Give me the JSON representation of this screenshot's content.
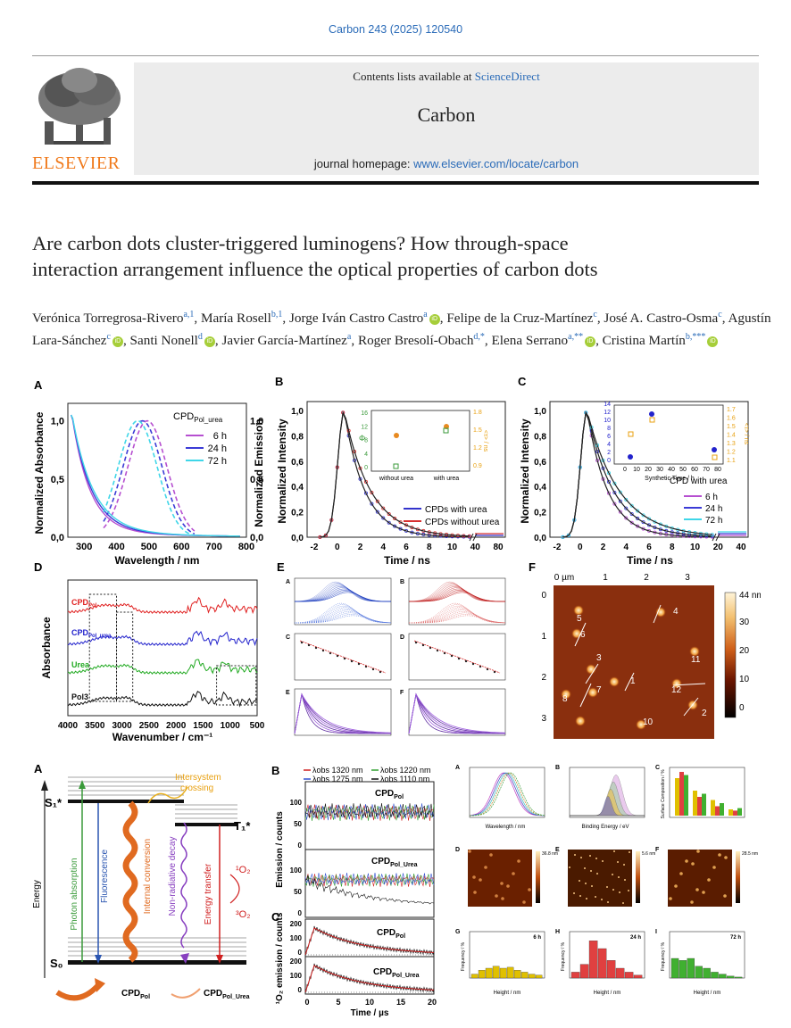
{
  "citation": "Carbon 243 (2025) 120540",
  "header": {
    "contents_prefix": "Contents lists available at",
    "sciencedirect": "ScienceDirect",
    "journal": "Carbon",
    "homepage_prefix": "journal homepage:",
    "homepage_url": "www.elsevier.com/locate/carbon",
    "publisher": "ELSEVIER"
  },
  "title_line1": "Are carbon dots cluster-triggered luminogens? How through-space",
  "title_line2": "interaction arrangement influence the optical properties of carbon dots",
  "authors": [
    {
      "name": "Verónica Torregrosa-Rivero",
      "aff": "a,1",
      "orcid": false
    },
    {
      "name": "María Rosell",
      "aff": "b,1",
      "orcid": false
    },
    {
      "name": "Jorge Iván Castro Castro",
      "aff": "a",
      "orcid": true
    },
    {
      "name": "Felipe de la Cruz-Martínez",
      "aff": "c",
      "orcid": false
    },
    {
      "name": "José A. Castro-Osma",
      "aff": "c",
      "orcid": false
    },
    {
      "name": "Agustín Lara-Sánchez",
      "aff": "c",
      "orcid": true
    },
    {
      "name": "Santi Nonell",
      "aff": "d",
      "orcid": true
    },
    {
      "name": "Javier García-Martínez",
      "aff": "a",
      "orcid": false
    },
    {
      "name": "Roger Bresolí-Obach",
      "aff": "d,*",
      "orcid": false
    },
    {
      "name": "Elena Serrano",
      "aff": "a,**",
      "orcid": true
    },
    {
      "name": "Cristina Martín",
      "aff": "b,***",
      "orcid": true
    }
  ],
  "figA": {
    "label": "A",
    "legend_title": "CPD",
    "legend_sub": "Pol_urea",
    "legend": [
      "6 h",
      "24 h",
      "72 h"
    ],
    "ylabel_left": "Normalized Absorbance",
    "ylabel_right": "Normalized Emission",
    "xlabel": "Wavelength / nm",
    "xticks": [
      "300",
      "400",
      "500",
      "600",
      "700",
      "800"
    ],
    "yticks": [
      "0,0",
      "0,5",
      "1,0"
    ],
    "colors": [
      "#b64fd0",
      "#3b3bd6",
      "#3fd6e8"
    ]
  },
  "figB": {
    "label": "B",
    "ylabel": "Normalized Intensity",
    "xlabel": "Time / ns",
    "xticks": [
      "-2",
      "0",
      "2",
      "4",
      "6",
      "8",
      "10",
      "40",
      "80"
    ],
    "yticks": [
      "0,0",
      "0,2",
      "0,4",
      "0,6",
      "0,8",
      "1,0"
    ],
    "legend": [
      "CPDs with urea",
      "CPDs without urea"
    ],
    "inset_x": [
      "without urea",
      "with urea"
    ],
    "inset_y_left": [
      "0",
      "2",
      "4",
      "6",
      "8",
      "10",
      "12",
      "14",
      "16"
    ],
    "inset_y_right": [
      "0.9",
      "1.2",
      "1.5",
      "1.8"
    ],
    "inset_phi": "Φ",
    "inset_tau": "<τ> / ns",
    "colors": [
      "#3333cc",
      "#d83030"
    ]
  },
  "figC": {
    "label": "C",
    "ylabel": "Normalized Intensity",
    "xlabel": "Time / ns",
    "xticks": [
      "-2",
      "0",
      "2",
      "4",
      "6",
      "8",
      "10",
      "20",
      "40"
    ],
    "yticks": [
      "0,0",
      "0,2",
      "0,4",
      "0,6",
      "0,8",
      "1,0"
    ],
    "legend_title": "CPD with urea",
    "legend": [
      "6 h",
      "24 h",
      "72 h"
    ],
    "inset_xlabel": "Synthetic Time / h",
    "inset_x": [
      "0",
      "10",
      "20",
      "30",
      "40",
      "50",
      "60",
      "70",
      "80"
    ],
    "inset_y_left": [
      "0",
      "2",
      "4",
      "6",
      "8",
      "10",
      "12",
      "14"
    ],
    "inset_y_right": [
      "1.1",
      "1.2",
      "1.3",
      "1.4",
      "1.5",
      "1.6",
      "1.7"
    ],
    "inset_tau": "<τ> / ns"
  },
  "figD": {
    "label": "D",
    "ylabel": "Absorbance",
    "xlabel": "Wavenumber / cm⁻¹",
    "xticks": [
      "4000",
      "3500",
      "3000",
      "2500",
      "2000",
      "1500",
      "1000",
      "500"
    ],
    "series": [
      "CPD",
      "CPD",
      "Urea",
      "Pol3"
    ],
    "series_sub": [
      "Pol",
      "Pol_urea",
      "",
      ""
    ],
    "colors": [
      "#e02020",
      "#2222cc",
      "#22aa22",
      "#111111"
    ]
  },
  "figE": {
    "label": "E"
  },
  "figF": {
    "label": "F",
    "scale_top": "44 nm",
    "scale_ticks": [
      "30",
      "20",
      "10",
      "0"
    ],
    "top_ticks": [
      "0 µm",
      "1",
      "2",
      "3"
    ],
    "left_ticks": [
      "0",
      "1",
      "2",
      "3"
    ],
    "spot_labels": [
      "4",
      "5",
      "6",
      "11",
      "3",
      "1",
      "12",
      "8",
      "7",
      "10",
      "2"
    ]
  },
  "figG": {
    "label": "A",
    "levels": [
      "S₁*",
      "S₀",
      "T₁*"
    ],
    "energy": "Energy",
    "photon": "Photon absorption",
    "fluorescence": "Fluorescence",
    "internal": "Internal conversion",
    "nonrad": "Non-radiative decay",
    "energy_transfer": "Energy transfer",
    "isc_line1": "Intersystem",
    "isc_line2": "crossing",
    "o2_singlet": "¹O₂",
    "o2_triplet": "³O₂",
    "cpd": "CPD",
    "cpd_sub": [
      "Pol",
      "Pol_Urea"
    ]
  },
  "figH": {
    "label_b": "B",
    "label_c": "C",
    "legend": [
      "λobs 1320 nm",
      "λobs 1220 nm",
      "λobs 1275 nm",
      "λobs 1110 nm"
    ],
    "ylabel_top": "Emission / counts",
    "ylabel_bottom": "¹O₂ emission / counts",
    "xlabel": "Time / µs",
    "xticks": [
      "0",
      "5",
      "10",
      "15",
      "20"
    ],
    "yticks_top": [
      "0",
      "50",
      "100"
    ],
    "yticks_bottom": [
      "0",
      "100",
      "200"
    ],
    "panel_labels": [
      "CPD",
      "CPD",
      "CPD",
      "CPD"
    ],
    "panel_subs": [
      "Pol",
      "Pol_Urea",
      "Pol",
      "Pol_Urea"
    ]
  },
  "figI": {
    "labels": [
      "A",
      "B",
      "C",
      "D",
      "E",
      "F",
      "G",
      "H",
      "I"
    ],
    "hist_titles": [
      "6 h",
      "24 h",
      "72 h"
    ],
    "hist_xlabel": "Height / nm",
    "hist_ylabel": "Frequency / %",
    "colors": [
      "#e0c000",
      "#e04040",
      "#40b030"
    ],
    "hist_values": [
      [
        4,
        8,
        10,
        12,
        10,
        11,
        8,
        6,
        4,
        3
      ],
      [
        6,
        14,
        38,
        30,
        18,
        10,
        6,
        3
      ],
      [
        20,
        18,
        20,
        12,
        10,
        6,
        4,
        2,
        1
      ]
    ],
    "binding_energy": "Binding Energy / eV",
    "wavelength": "Wavelength / nm",
    "surface": "Surface Composition / %",
    "afm_scales": [
      "36.8 nm",
      "5.6 nm",
      "28.5 nm"
    ]
  }
}
